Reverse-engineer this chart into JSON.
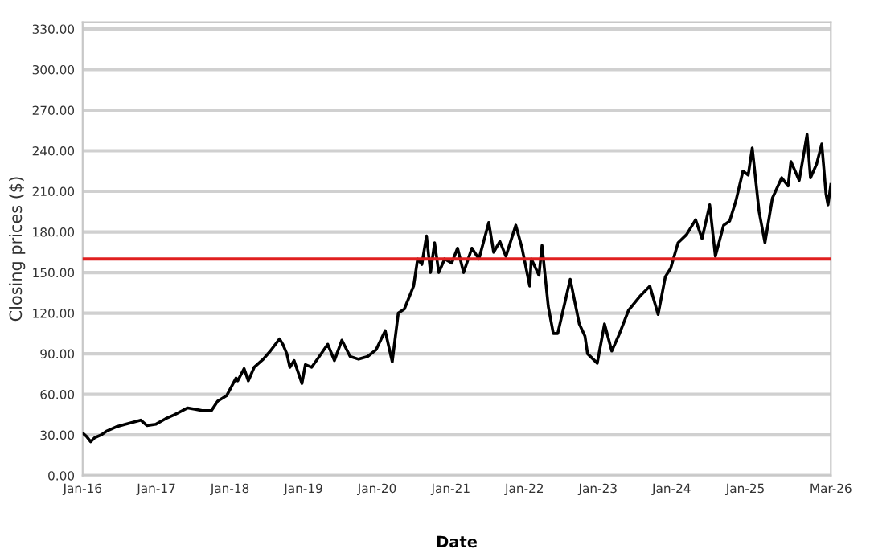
{
  "chart_data": {
    "type": "line",
    "xlabel": "Date",
    "ylabel": "Closing prices ($)",
    "x": [
      "2016-01-04",
      "2016-01-20",
      "2016-02-10",
      "2016-03-01",
      "2016-04-01",
      "2016-05-01",
      "2016-06-15",
      "2016-08-01",
      "2016-10-15",
      "2016-11-15",
      "2016-12-30",
      "2017-02-15",
      "2017-04-01",
      "2017-06-05",
      "2017-07-15",
      "2017-08-15",
      "2017-10-01",
      "2017-11-01",
      "2017-12-15",
      "2018-01-31",
      "2018-02-08",
      "2018-03-12",
      "2018-04-02",
      "2018-05-01",
      "2018-06-15",
      "2018-07-20",
      "2018-09-04",
      "2018-09-20",
      "2018-10-10",
      "2018-10-25",
      "2018-11-15",
      "2018-12-24",
      "2019-01-10",
      "2019-02-10",
      "2019-03-20",
      "2019-05-01",
      "2019-06-03",
      "2019-07-10",
      "2019-08-20",
      "2019-10-01",
      "2019-11-15",
      "2019-12-27",
      "2020-02-10",
      "2020-03-16",
      "2020-04-15",
      "2020-05-15",
      "2020-06-30",
      "2020-07-20",
      "2020-08-10",
      "2020-09-02",
      "2020-09-22",
      "2020-10-12",
      "2020-11-02",
      "2020-12-01",
      "2021-01-05",
      "2021-02-03",
      "2021-03-05",
      "2021-04-15",
      "2021-05-20",
      "2021-07-08",
      "2021-08-01",
      "2021-09-01",
      "2021-10-01",
      "2021-11-19",
      "2021-12-20",
      "2022-01-27",
      "2022-02-04",
      "2022-03-14",
      "2022-03-29",
      "2022-04-29",
      "2022-05-24",
      "2022-06-15",
      "2022-08-16",
      "2022-09-30",
      "2022-10-28",
      "2022-11-10",
      "2022-12-28",
      "2023-02-02",
      "2023-03-10",
      "2023-04-15",
      "2023-06-01",
      "2023-07-31",
      "2023-09-15",
      "2023-10-26",
      "2023-12-01",
      "2023-12-27",
      "2024-02-02",
      "2024-03-15",
      "2024-04-29",
      "2024-05-31",
      "2024-07-08",
      "2024-08-05",
      "2024-09-15",
      "2024-10-15",
      "2024-11-15",
      "2024-12-20",
      "2025-01-15",
      "2025-02-04",
      "2025-03-10",
      "2025-04-08",
      "2025-05-15",
      "2025-06-30",
      "2025-08-01",
      "2025-08-15",
      "2025-09-25",
      "2025-11-03",
      "2025-11-20",
      "2025-12-20",
      "2026-01-15",
      "2026-02-05",
      "2026-02-15",
      "2026-03-01"
    ],
    "series": [
      {
        "color": "#000000",
        "values": [
          31,
          29,
          25,
          28,
          30,
          33,
          36,
          38,
          41,
          37,
          38,
          42,
          45,
          50,
          49,
          48,
          48,
          55,
          59,
          72,
          70,
          79,
          70,
          80,
          86,
          92,
          101,
          97,
          90,
          80,
          85,
          68,
          82,
          80,
          88,
          97,
          85,
          100,
          88,
          86,
          88,
          93,
          107,
          84,
          120,
          123,
          140,
          160,
          156,
          177,
          150,
          172,
          150,
          160,
          157,
          168,
          150,
          168,
          160,
          187,
          165,
          173,
          162,
          185,
          168,
          140,
          160,
          148,
          170,
          125,
          105,
          105,
          145,
          112,
          103,
          90,
          83,
          112,
          92,
          104,
          122,
          133,
          140,
          119,
          147,
          153,
          172,
          178,
          189,
          175,
          200,
          162,
          185,
          188,
          203,
          225,
          222,
          242,
          195,
          172,
          205,
          220,
          214,
          232,
          218,
          252,
          220,
          230,
          245,
          208,
          200,
          215
        ]
      }
    ],
    "xlim": [
      "2016-01-01",
      "2026-03-01"
    ],
    "xticks": [
      {
        "value": "2016-01-01",
        "label": "Jan-16"
      },
      {
        "value": "2017-01-01",
        "label": "Jan-17"
      },
      {
        "value": "2018-01-01",
        "label": "Jan-18"
      },
      {
        "value": "2019-01-01",
        "label": "Jan-19"
      },
      {
        "value": "2020-01-01",
        "label": "Jan-20"
      },
      {
        "value": "2021-01-01",
        "label": "Jan-21"
      },
      {
        "value": "2022-01-01",
        "label": "Jan-22"
      },
      {
        "value": "2023-01-01",
        "label": "Jan-23"
      },
      {
        "value": "2024-01-01",
        "label": "Jan-24"
      },
      {
        "value": "2025-01-01",
        "label": "Jan-25"
      },
      {
        "value": "2026-03-01",
        "label": "Mar-26"
      }
    ],
    "ylim": [
      0,
      335
    ],
    "yticks": [
      {
        "value": 0,
        "label": "0.00"
      },
      {
        "value": 30,
        "label": "30.00"
      },
      {
        "value": 60,
        "label": "60.00"
      },
      {
        "value": 90,
        "label": "90.00"
      },
      {
        "value": 120,
        "label": "120.00"
      },
      {
        "value": 150,
        "label": "150.00"
      },
      {
        "value": 180,
        "label": "180.00"
      },
      {
        "value": 210,
        "label": "210.00"
      },
      {
        "value": 240,
        "label": "240.00"
      },
      {
        "value": 270,
        "label": "270.00"
      },
      {
        "value": 300,
        "label": "300.00"
      },
      {
        "value": 330,
        "label": "330.00"
      }
    ],
    "ref_lines": [
      {
        "axis": "y",
        "value": 160,
        "color": "#e02020"
      }
    ],
    "grid": "y",
    "marker": "none",
    "line_style": "solid"
  }
}
